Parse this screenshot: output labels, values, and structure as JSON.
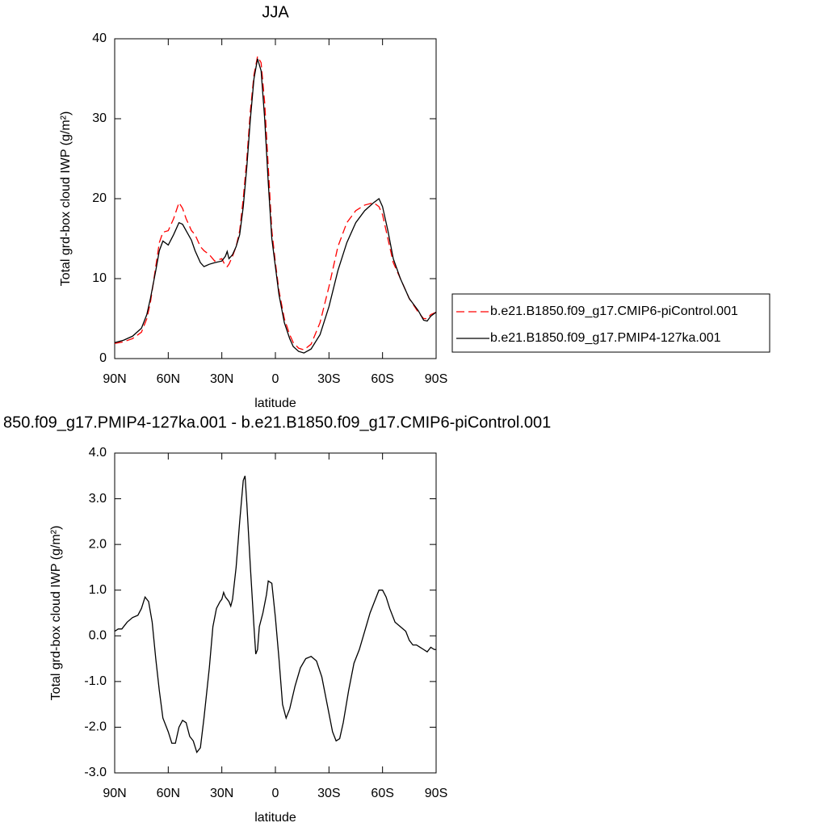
{
  "chart_data": [
    {
      "type": "line",
      "title": "JJA",
      "xlabel": "latitude",
      "ylabel": "Total grd-box cloud IWP (g/m²)",
      "xlim": [
        90,
        -90
      ],
      "xticks": [
        {
          "value": 90,
          "label": "90N"
        },
        {
          "value": 60,
          "label": "60N"
        },
        {
          "value": 30,
          "label": "30N"
        },
        0,
        {
          "value": -30,
          "label": "30S"
        },
        {
          "value": -60,
          "label": "60S"
        },
        {
          "value": -90,
          "label": "90S"
        }
      ],
      "ylim": [
        0,
        40
      ],
      "yticks": [
        0,
        10,
        20,
        30,
        40
      ],
      "legend": "right",
      "x": [
        90,
        85,
        80,
        75,
        72,
        70,
        67,
        65,
        63,
        60,
        57,
        54,
        52,
        50,
        47,
        45,
        42,
        40,
        37,
        34,
        30,
        28,
        27,
        26,
        24,
        22,
        20,
        18,
        16,
        14,
        12,
        10,
        8,
        6,
        4,
        2,
        0,
        -2,
        -5,
        -8,
        -10,
        -13,
        -16,
        -20,
        -25,
        -30,
        -35,
        -40,
        -45,
        -50,
        -55,
        -58,
        -60,
        -63,
        -66,
        -70,
        -75,
        -80,
        -83,
        -85,
        -87,
        -90
      ],
      "series": [
        {
          "name": "b.e21.B1850.f09_g17.CMIP6-piControl.001",
          "color": "#ff0000",
          "line_style": "dashed",
          "values": [
            1.9,
            2.1,
            2.5,
            3.3,
            5,
            7,
            11.5,
            14.5,
            15.8,
            16,
            17.5,
            19.5,
            18.8,
            17.5,
            16,
            15.5,
            14,
            13.5,
            13,
            12.2,
            12.5,
            11.6,
            11.5,
            11.8,
            12.8,
            14,
            16,
            20,
            25,
            31,
            35.5,
            37.8,
            37,
            32,
            24,
            16,
            12,
            8.5,
            5,
            3,
            2,
            1.3,
            1.1,
            1.8,
            4.5,
            9,
            14,
            17,
            18.5,
            19.2,
            19.5,
            19,
            18,
            15,
            12,
            10,
            7.5,
            5.8,
            5,
            5,
            5.5,
            5.8
          ]
        },
        {
          "name": "b.e21.B1850.f09_g17.PMIP4-127ka.001",
          "color": "#000000",
          "line_style": "solid",
          "values": [
            2,
            2.3,
            2.8,
            3.8,
            5.5,
            7.5,
            11,
            13.5,
            14.7,
            14.2,
            15.5,
            17,
            16.8,
            16,
            14.8,
            13.5,
            12,
            11.5,
            11.8,
            12,
            12.2,
            12.8,
            13.4,
            12.5,
            13,
            14,
            15.5,
            19,
            24,
            30,
            35,
            37.5,
            36,
            30,
            22,
            15,
            11.5,
            8,
            4.5,
            2.5,
            1.5,
            0.9,
            0.7,
            1.2,
            3,
            6.5,
            11,
            14.5,
            17,
            18.5,
            19.5,
            20,
            19,
            16,
            12.5,
            10,
            7.5,
            6,
            4.8,
            4.7,
            5.3,
            5.8
          ]
        }
      ]
    },
    {
      "type": "line",
      "title": "850.f09_g17.PMIP4-127ka.001 - b.e21.B1850.f09_g17.CMIP6-piControl.001",
      "xlabel": "latitude",
      "ylabel": "Total grd-box cloud IWP (g/m²)",
      "xlim": [
        90,
        -90
      ],
      "xticks": [
        {
          "value": 90,
          "label": "90N"
        },
        {
          "value": 60,
          "label": "60N"
        },
        {
          "value": 30,
          "label": "30N"
        },
        0,
        {
          "value": -30,
          "label": "30S"
        },
        {
          "value": -60,
          "label": "60S"
        },
        {
          "value": -90,
          "label": "90S"
        }
      ],
      "ylim": [
        -3,
        4
      ],
      "yticks": [
        {
          "value": -3,
          "label": "-3.0"
        },
        {
          "value": -2,
          "label": "-2.0"
        },
        {
          "value": -1,
          "label": "-1.0"
        },
        {
          "value": 0,
          "label": "0.0"
        },
        {
          "value": 1,
          "label": "1.0"
        },
        {
          "value": 2,
          "label": "2.0"
        },
        {
          "value": 3,
          "label": "3.0"
        },
        {
          "value": 4,
          "label": "4.0"
        }
      ],
      "color": "#000000",
      "x": [
        90,
        88,
        86,
        83,
        80,
        77,
        75,
        73,
        71,
        69,
        67,
        65,
        63,
        60,
        58,
        56,
        54,
        52,
        50,
        48,
        46,
        44,
        42,
        40,
        37,
        35,
        33,
        31,
        30,
        29,
        28,
        26,
        25,
        24,
        22,
        20,
        18,
        17,
        16,
        14,
        12,
        11,
        10,
        9,
        7,
        5,
        4,
        2,
        0,
        -2,
        -4,
        -6,
        -8,
        -11,
        -14,
        -17,
        -20,
        -23,
        -26,
        -29,
        -32,
        -34,
        -36,
        -38,
        -41,
        -44,
        -47,
        -50,
        -53,
        -56,
        -58,
        -60,
        -62,
        -64,
        -67,
        -70,
        -73,
        -75,
        -77,
        -79,
        -81,
        -83,
        -85,
        -87,
        -89,
        -90
      ],
      "values": [
        0.1,
        0.15,
        0.15,
        0.3,
        0.4,
        0.45,
        0.6,
        0.85,
        0.75,
        0.3,
        -0.5,
        -1.2,
        -1.8,
        -2.1,
        -2.35,
        -2.35,
        -2.0,
        -1.85,
        -1.9,
        -2.2,
        -2.3,
        -2.55,
        -2.45,
        -1.8,
        -0.7,
        0.2,
        0.6,
        0.75,
        0.8,
        0.95,
        0.85,
        0.75,
        0.65,
        0.8,
        1.5,
        2.5,
        3.4,
        3.5,
        2.9,
        1.5,
        0.2,
        -0.4,
        -0.3,
        0.2,
        0.5,
        0.9,
        1.2,
        1.15,
        0.4,
        -0.5,
        -1.5,
        -1.8,
        -1.6,
        -1.1,
        -0.7,
        -0.5,
        -0.45,
        -0.55,
        -0.9,
        -1.5,
        -2.1,
        -2.3,
        -2.25,
        -1.9,
        -1.2,
        -0.6,
        -0.3,
        0.1,
        0.5,
        0.8,
        1.0,
        1.0,
        0.85,
        0.6,
        0.3,
        0.2,
        0.1,
        -0.1,
        -0.2,
        -0.2,
        -0.25,
        -0.3,
        -0.35,
        -0.25,
        -0.3,
        -0.3
      ]
    }
  ]
}
